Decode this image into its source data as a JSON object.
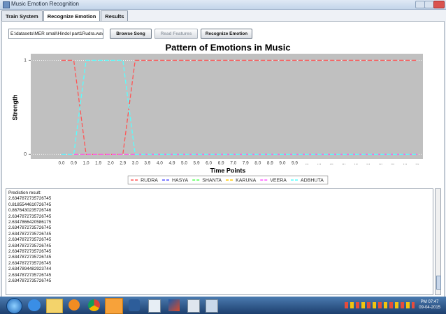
{
  "window": {
    "title": "Music Emotion Recognition",
    "tabs": [
      "Train System",
      "Recognize Emotion",
      "Results"
    ]
  },
  "toolbar": {
    "file_path": "E:\\datasets\\MER small\\Hindol part1Rudra.wav",
    "buttons": [
      "Browse Song",
      "Read Features",
      "Recognize Emotion"
    ]
  },
  "chart_data": {
    "type": "line",
    "title": "Pattern of Emotions in Music",
    "x_label": "Time Points",
    "y_label": "Strength",
    "categories": [
      "0.0",
      "0.9",
      "1.0",
      "1.9",
      "2.0",
      "2.9",
      "3.0",
      "3.9",
      "4.0",
      "4.9",
      "5.0",
      "5.9",
      "6.0",
      "6.9",
      "7.0",
      "7.9",
      "8.0",
      "8.9",
      "9.0",
      "9.9",
      "...",
      "...",
      "...",
      "...",
      "...",
      "...",
      "...",
      "...",
      "...",
      "..."
    ],
    "series": [
      {
        "name": "RUDRA",
        "color": "#ff5555",
        "values": [
          1,
          1,
          0,
          0,
          0,
          0,
          1,
          1,
          1,
          1,
          1,
          1,
          1,
          1,
          1,
          1,
          1,
          1,
          1,
          1,
          1,
          1,
          1,
          1,
          1,
          1,
          1,
          1,
          1,
          1
        ]
      },
      {
        "name": "HASYA",
        "color": "#5555ff",
        "values": [
          0,
          0,
          0,
          0,
          0,
          0,
          0,
          0,
          0,
          0,
          0,
          0,
          0,
          0,
          0,
          0,
          0,
          0,
          0,
          0,
          0,
          0,
          0,
          0,
          0,
          0,
          0,
          0,
          0,
          0
        ]
      },
      {
        "name": "SHANTA",
        "color": "#55ff55",
        "values": [
          0,
          0,
          0,
          0,
          0,
          0,
          0,
          0,
          0,
          0,
          0,
          0,
          0,
          0,
          0,
          0,
          0,
          0,
          0,
          0,
          0,
          0,
          0,
          0,
          0,
          0,
          0,
          0,
          0,
          0
        ]
      },
      {
        "name": "KARUNA",
        "color": "#ffc800",
        "values": [
          0,
          0,
          0,
          0,
          0,
          0,
          0,
          0,
          0,
          0,
          0,
          0,
          0,
          0,
          0,
          0,
          0,
          0,
          0,
          0,
          0,
          0,
          0,
          0,
          0,
          0,
          0,
          0,
          0,
          0
        ]
      },
      {
        "name": "VEERA",
        "color": "#ff55ff",
        "values": [
          0,
          0,
          0,
          0,
          0,
          0,
          0,
          0,
          0,
          0,
          0,
          0,
          0,
          0,
          0,
          0,
          0,
          0,
          0,
          0,
          0,
          0,
          0,
          0,
          0,
          0,
          0,
          0,
          0,
          0
        ]
      },
      {
        "name": "ADBHUTA",
        "color": "#55ffff",
        "values": [
          0,
          0,
          1,
          1,
          1,
          1,
          0,
          0,
          0,
          0,
          0,
          0,
          0,
          0,
          0,
          0,
          0,
          0,
          0,
          0,
          0,
          0,
          0,
          0,
          0,
          0,
          0,
          0,
          0,
          0
        ]
      }
    ],
    "ylim": [
      -0.05,
      1.07
    ],
    "yticks": [
      0,
      1
    ],
    "grid": true,
    "legend": "bottom"
  },
  "output": {
    "heading": "Prediction result:",
    "lines": [
      "2.6347872735726745",
      "0.8185544610726745",
      "0.8676430235726746",
      "2.6347872735726745",
      "2.6347866420586175",
      "2.6347872735726745",
      "2.6347872735726745",
      "2.6347872735726745",
      "2.6347872735726745",
      "2.6347872735726745",
      "2.6347872735726745",
      "2.6347872735726745",
      "2.6347894482923744",
      "2.6347872735726745",
      "2.6347872735726745"
    ]
  },
  "taskbar": {
    "time": "PM 07:47",
    "date": "09-04-2015"
  }
}
